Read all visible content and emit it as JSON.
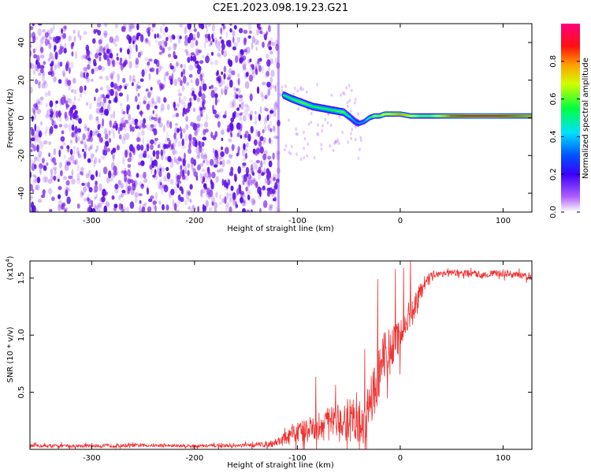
{
  "figure_title": "C2E1.2023.098.19.23.G21",
  "colors": {
    "snr_line": "#ee3333",
    "speckle": "#7a1fe6",
    "ridge_hot": "#ff2020"
  },
  "chart_data": [
    {
      "type": "heatmap",
      "title": "C2E1.2023.098.19.23.G21",
      "xlabel": "Height of straight line (km)",
      "ylabel": "Frequency (Hz)",
      "xlim": [
        -360,
        128
      ],
      "ylim": [
        -50,
        50
      ],
      "x_ticks": [
        -300,
        -200,
        -100,
        0,
        100
      ],
      "x_tick_labels": [
        "-300",
        "-200",
        "-100",
        "0",
        "100"
      ],
      "y_ticks": [
        40,
        20,
        0,
        -20,
        -40
      ],
      "y_tick_labels": [
        "40",
        "20",
        "0",
        "-20",
        "-40"
      ],
      "colorbar": {
        "label": "Normalized spectral amplitude",
        "range": [
          0,
          1
        ],
        "ticks": [
          0.0,
          0.2,
          0.4,
          0.6,
          0.8
        ],
        "tick_labels": [
          "0.0",
          "0.2",
          "0.4",
          "0.6",
          "0.8"
        ],
        "colormap": "rainbow (white-purple-blue-cyan-green-yellow-red-magenta)"
      },
      "noise_region_x": [
        -360,
        -118
      ],
      "signal_ridge": {
        "x": [
          -113,
          -105,
          -95,
          -85,
          -75,
          -65,
          -55,
          -48,
          -44,
          -40,
          -35,
          -30,
          -25,
          -20,
          -15,
          -10,
          -5,
          0,
          10,
          20,
          30,
          50,
          70,
          90,
          110,
          128
        ],
        "freq": [
          12,
          10,
          8,
          6,
          5,
          4,
          3,
          0,
          -2,
          -3,
          -2,
          0,
          1,
          1,
          2,
          2,
          2,
          2,
          1,
          1,
          1,
          1,
          1,
          1,
          1,
          1
        ],
        "amplitude": [
          0.5,
          0.55,
          0.6,
          0.55,
          0.55,
          0.55,
          0.6,
          0.4,
          0.35,
          0.35,
          0.35,
          0.45,
          0.65,
          0.6,
          0.7,
          0.7,
          0.75,
          0.8,
          0.7,
          0.6,
          0.6,
          0.85,
          0.9,
          0.9,
          0.85,
          0.8
        ]
      },
      "grid": false
    },
    {
      "type": "line",
      "xlabel": "Height of straight line (km)",
      "ylabel": "SNR (10 * v/v)",
      "y_scale_label": "(x10",
      "y_scale_exponent": "4",
      "y_scale_close": ")",
      "xlim": [
        -360,
        128
      ],
      "ylim": [
        0,
        16500
      ],
      "x_ticks": [
        -300,
        -200,
        -100,
        0,
        100
      ],
      "x_tick_labels": [
        "-300",
        "-200",
        "-100",
        "0",
        "100"
      ],
      "y_ticks": [
        5000,
        10000,
        15000
      ],
      "y_tick_labels": [
        "0.5",
        "1.0",
        "1.5"
      ],
      "series": [
        {
          "x": [
            -360,
            -300,
            -250,
            -200,
            -160,
            -140,
            -125,
            -115,
            -105,
            -95,
            -85,
            -75,
            -65,
            -55,
            -45,
            -40,
            -35,
            -30,
            -25,
            -20,
            -15,
            -10,
            -5,
            0,
            5,
            10,
            15,
            20,
            25,
            30,
            40,
            50,
            60,
            70,
            80,
            90,
            100,
            110,
            120,
            128
          ],
          "y": [
            300,
            300,
            350,
            300,
            300,
            400,
            500,
            800,
            1200,
            1600,
            1900,
            2100,
            2200,
            2400,
            2800,
            2500,
            2000,
            4500,
            4800,
            7000,
            8500,
            8500,
            9500,
            10000,
            10800,
            12000,
            12500,
            13800,
            14800,
            15300,
            15400,
            15400,
            15400,
            15400,
            15300,
            15400,
            15400,
            15300,
            15200,
            15000
          ],
          "noise": [
            150,
            150,
            150,
            150,
            150,
            200,
            300,
            500,
            800,
            1000,
            1200,
            1400,
            1600,
            1800,
            2200,
            2000,
            1800,
            2500,
            2500,
            2500,
            2200,
            2000,
            1800,
            1600,
            1500,
            1400,
            1200,
            900,
            600,
            400,
            300,
            300,
            300,
            300,
            300,
            300,
            300,
            300,
            300,
            300
          ]
        }
      ],
      "grid": false
    }
  ]
}
